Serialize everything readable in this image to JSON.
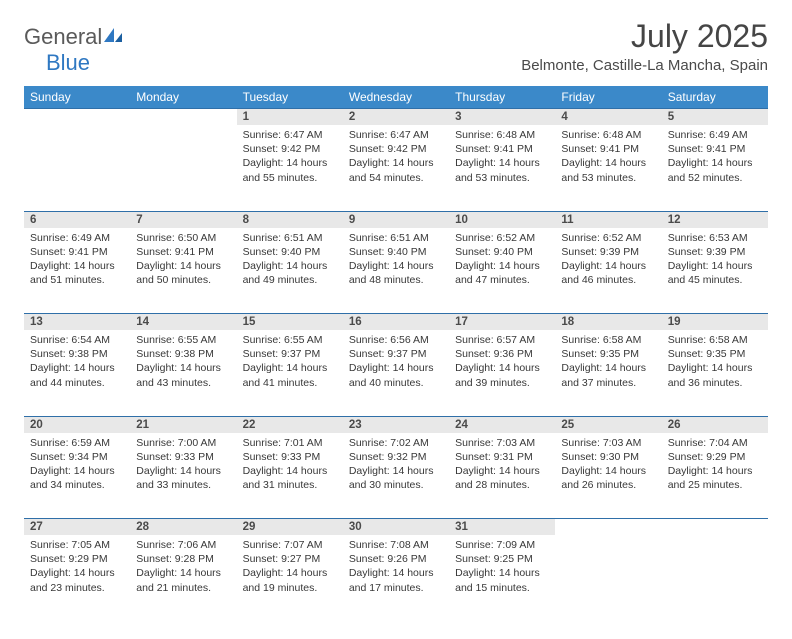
{
  "brand": {
    "word1": "General",
    "word2": "Blue",
    "color_gray": "#5a5a5a",
    "color_blue": "#2f78c2"
  },
  "header": {
    "title": "July 2025",
    "location": "Belmonte, Castille-La Mancha, Spain"
  },
  "colors": {
    "header_bg": "#3b89c9",
    "header_text": "#ffffff",
    "daynum_bg": "#e8e8e8",
    "row_border": "#2f6fa8",
    "body_text": "#383838"
  },
  "dayNames": [
    "Sunday",
    "Monday",
    "Tuesday",
    "Wednesday",
    "Thursday",
    "Friday",
    "Saturday"
  ],
  "weeks": [
    [
      null,
      null,
      {
        "n": "1",
        "sr": "6:47 AM",
        "ss": "9:42 PM",
        "dl": "14 hours and 55 minutes."
      },
      {
        "n": "2",
        "sr": "6:47 AM",
        "ss": "9:42 PM",
        "dl": "14 hours and 54 minutes."
      },
      {
        "n": "3",
        "sr": "6:48 AM",
        "ss": "9:41 PM",
        "dl": "14 hours and 53 minutes."
      },
      {
        "n": "4",
        "sr": "6:48 AM",
        "ss": "9:41 PM",
        "dl": "14 hours and 53 minutes."
      },
      {
        "n": "5",
        "sr": "6:49 AM",
        "ss": "9:41 PM",
        "dl": "14 hours and 52 minutes."
      }
    ],
    [
      {
        "n": "6",
        "sr": "6:49 AM",
        "ss": "9:41 PM",
        "dl": "14 hours and 51 minutes."
      },
      {
        "n": "7",
        "sr": "6:50 AM",
        "ss": "9:41 PM",
        "dl": "14 hours and 50 minutes."
      },
      {
        "n": "8",
        "sr": "6:51 AM",
        "ss": "9:40 PM",
        "dl": "14 hours and 49 minutes."
      },
      {
        "n": "9",
        "sr": "6:51 AM",
        "ss": "9:40 PM",
        "dl": "14 hours and 48 minutes."
      },
      {
        "n": "10",
        "sr": "6:52 AM",
        "ss": "9:40 PM",
        "dl": "14 hours and 47 minutes."
      },
      {
        "n": "11",
        "sr": "6:52 AM",
        "ss": "9:39 PM",
        "dl": "14 hours and 46 minutes."
      },
      {
        "n": "12",
        "sr": "6:53 AM",
        "ss": "9:39 PM",
        "dl": "14 hours and 45 minutes."
      }
    ],
    [
      {
        "n": "13",
        "sr": "6:54 AM",
        "ss": "9:38 PM",
        "dl": "14 hours and 44 minutes."
      },
      {
        "n": "14",
        "sr": "6:55 AM",
        "ss": "9:38 PM",
        "dl": "14 hours and 43 minutes."
      },
      {
        "n": "15",
        "sr": "6:55 AM",
        "ss": "9:37 PM",
        "dl": "14 hours and 41 minutes."
      },
      {
        "n": "16",
        "sr": "6:56 AM",
        "ss": "9:37 PM",
        "dl": "14 hours and 40 minutes."
      },
      {
        "n": "17",
        "sr": "6:57 AM",
        "ss": "9:36 PM",
        "dl": "14 hours and 39 minutes."
      },
      {
        "n": "18",
        "sr": "6:58 AM",
        "ss": "9:35 PM",
        "dl": "14 hours and 37 minutes."
      },
      {
        "n": "19",
        "sr": "6:58 AM",
        "ss": "9:35 PM",
        "dl": "14 hours and 36 minutes."
      }
    ],
    [
      {
        "n": "20",
        "sr": "6:59 AM",
        "ss": "9:34 PM",
        "dl": "14 hours and 34 minutes."
      },
      {
        "n": "21",
        "sr": "7:00 AM",
        "ss": "9:33 PM",
        "dl": "14 hours and 33 minutes."
      },
      {
        "n": "22",
        "sr": "7:01 AM",
        "ss": "9:33 PM",
        "dl": "14 hours and 31 minutes."
      },
      {
        "n": "23",
        "sr": "7:02 AM",
        "ss": "9:32 PM",
        "dl": "14 hours and 30 minutes."
      },
      {
        "n": "24",
        "sr": "7:03 AM",
        "ss": "9:31 PM",
        "dl": "14 hours and 28 minutes."
      },
      {
        "n": "25",
        "sr": "7:03 AM",
        "ss": "9:30 PM",
        "dl": "14 hours and 26 minutes."
      },
      {
        "n": "26",
        "sr": "7:04 AM",
        "ss": "9:29 PM",
        "dl": "14 hours and 25 minutes."
      }
    ],
    [
      {
        "n": "27",
        "sr": "7:05 AM",
        "ss": "9:29 PM",
        "dl": "14 hours and 23 minutes."
      },
      {
        "n": "28",
        "sr": "7:06 AM",
        "ss": "9:28 PM",
        "dl": "14 hours and 21 minutes."
      },
      {
        "n": "29",
        "sr": "7:07 AM",
        "ss": "9:27 PM",
        "dl": "14 hours and 19 minutes."
      },
      {
        "n": "30",
        "sr": "7:08 AM",
        "ss": "9:26 PM",
        "dl": "14 hours and 17 minutes."
      },
      {
        "n": "31",
        "sr": "7:09 AM",
        "ss": "9:25 PM",
        "dl": "14 hours and 15 minutes."
      },
      null,
      null
    ]
  ],
  "labels": {
    "sunrise": "Sunrise:",
    "sunset": "Sunset:",
    "daylight": "Daylight:"
  }
}
